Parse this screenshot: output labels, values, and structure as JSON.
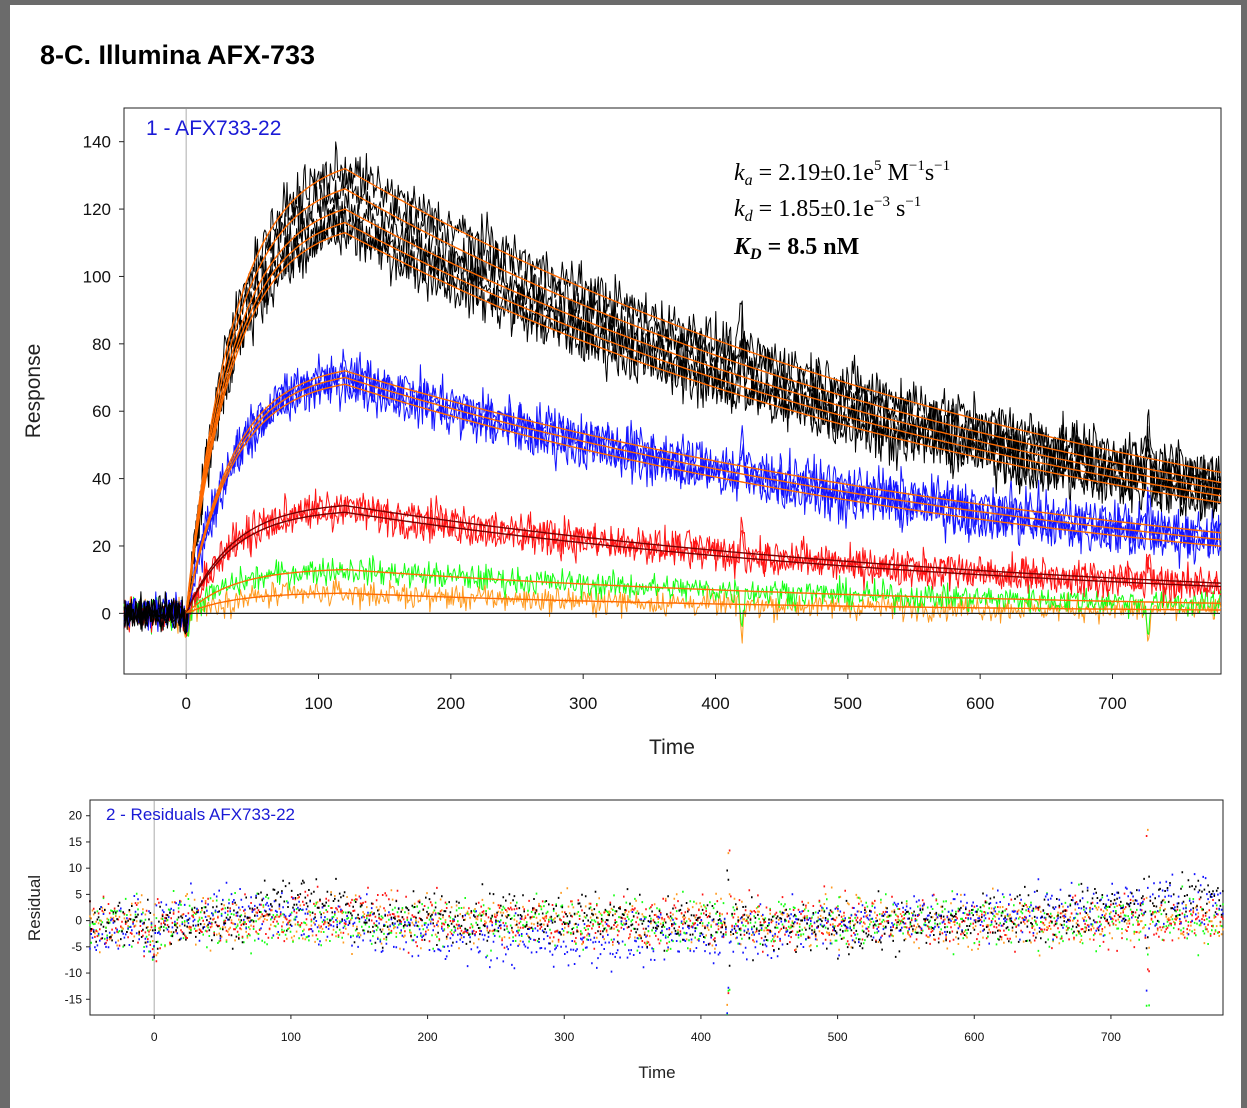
{
  "heading": "8-C. Illumina AFX-733",
  "annotation": {
    "ka": {
      "sym": "k",
      "sub": "a",
      "val": " = 2.19±0.1e",
      "sup1": "5",
      "unit": " M",
      "sup2": "−1",
      "unit2": "s",
      "sup3": "−1"
    },
    "kd": {
      "sym": "k",
      "sub": "d",
      "val": " = 1.85±0.1e",
      "sup1": "−3",
      "unit": " s",
      "sup2": "−1"
    },
    "KD": {
      "sym": "K",
      "sub": "D",
      "val": " = 8.5 nM"
    }
  },
  "colors": {
    "black": "#000000",
    "blue": "#1414ff",
    "red": "#ff1414",
    "green": "#14ff14",
    "orange": "#ff9a1f",
    "fit": "#ff6a00",
    "darkred": "#7a0000",
    "marker": "#bfbfbf"
  },
  "chart_data": [
    {
      "type": "line",
      "title": "1 - AFX733-22",
      "xlabel": "Time",
      "ylabel": "Response",
      "xlim": [
        -47,
        782
      ],
      "ylim": [
        -18,
        150
      ],
      "xticks": [
        0,
        100,
        200,
        300,
        400,
        500,
        600,
        700
      ],
      "yticks": [
        0,
        20,
        40,
        60,
        80,
        100,
        120,
        140
      ],
      "injection_start": 0,
      "injection_end": 120,
      "spikes": [
        420,
        727
      ],
      "series": [
        {
          "color": "black",
          "peaks": [
            132,
            126,
            120,
            116,
            113
          ],
          "ends": [
            42,
            39,
            37,
            35,
            33
          ]
        },
        {
          "color": "blue",
          "peaks": [
            72,
            70,
            68
          ],
          "ends": [
            24,
            22,
            20
          ]
        },
        {
          "color": "red",
          "peaks": [
            32,
            30
          ],
          "ends": [
            9,
            8
          ]
        },
        {
          "color": "green",
          "peaks": [
            13
          ],
          "ends": [
            3
          ]
        },
        {
          "color": "orange",
          "peaks": [
            6
          ],
          "ends": [
            1
          ]
        }
      ]
    },
    {
      "type": "scatter",
      "title": "2 - Residuals AFX733-22",
      "xlabel": "Time",
      "ylabel": "Residual",
      "xlim": [
        -47,
        782
      ],
      "ylim": [
        -18,
        23
      ],
      "xticks": [
        0,
        100,
        200,
        300,
        400,
        500,
        600,
        700
      ],
      "yticks": [
        20,
        15,
        10,
        5,
        0,
        -5,
        -10,
        -15
      ]
    }
  ]
}
